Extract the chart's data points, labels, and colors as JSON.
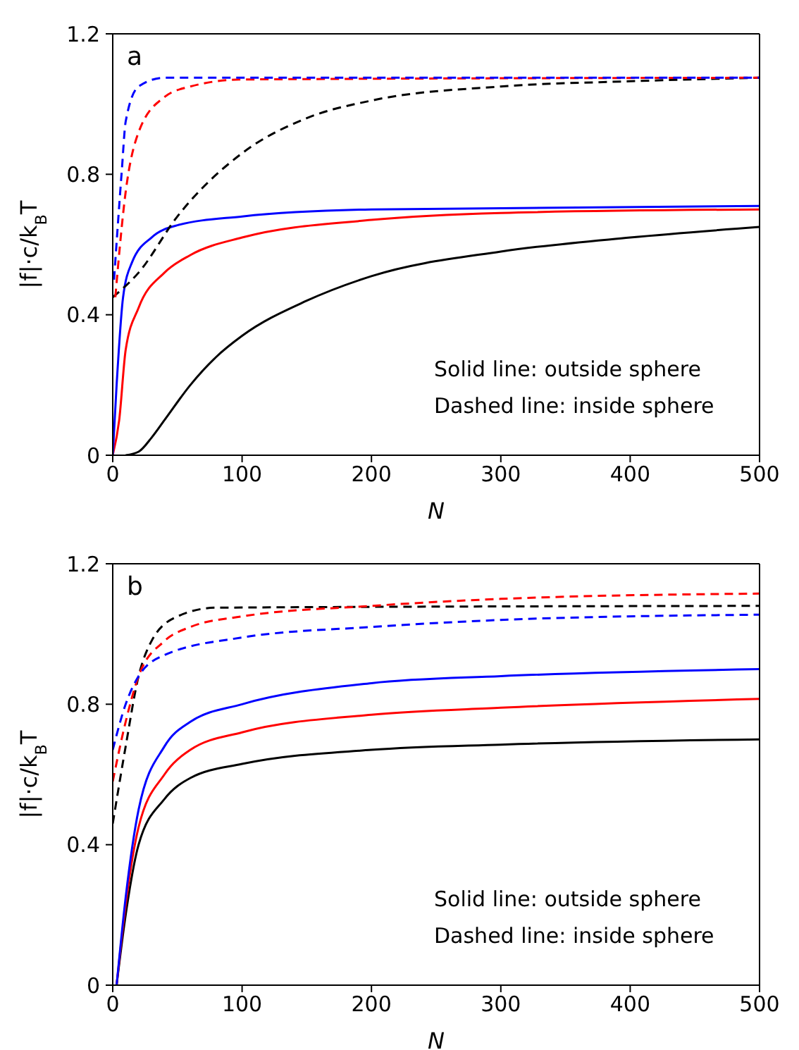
{
  "chart_data": [
    {
      "type": "line",
      "xlabel": "N",
      "ylabel": "|f|·c/k$_{B}$T",
      "xlim": [
        0,
        500
      ],
      "ylim": [
        0,
        1.2
      ],
      "xticks": [
        0,
        100,
        200,
        300,
        400,
        500
      ],
      "yticks": [
        0,
        0.4,
        0.8,
        1.2
      ],
      "grid": false,
      "marker": "none",
      "annotations": [
        "a",
        "Solid line: outside sphere",
        "Dashed line: inside sphere"
      ],
      "series": [
        {
          "color": "#000000",
          "line_style": "solid",
          "x": [
            10,
            20,
            30,
            40,
            60,
            80,
            100,
            150,
            200,
            300,
            400,
            500
          ],
          "values": [
            0,
            0.01,
            0.05,
            0.1,
            0.2,
            0.28,
            0.34,
            0.44,
            0.51,
            0.58,
            0.62,
            0.65
          ]
        },
        {
          "color": "#ff0000",
          "line_style": "solid",
          "x": [
            0,
            5,
            10,
            20,
            40,
            60,
            100,
            200,
            300,
            500
          ],
          "values": [
            0,
            0.1,
            0.3,
            0.42,
            0.52,
            0.57,
            0.62,
            0.67,
            0.69,
            0.7
          ]
        },
        {
          "color": "#0000ff",
          "line_style": "solid",
          "x": [
            0,
            3,
            8,
            15,
            30,
            50,
            100,
            200,
            500
          ],
          "values": [
            0,
            0.2,
            0.45,
            0.55,
            0.62,
            0.655,
            0.68,
            0.7,
            0.71
          ]
        },
        {
          "color": "#000000",
          "line_style": "dashed",
          "x": [
            0,
            20,
            50,
            100,
            150,
            200,
            300,
            400,
            500
          ],
          "values": [
            0.45,
            0.52,
            0.68,
            0.86,
            0.96,
            1.01,
            1.05,
            1.065,
            1.075
          ]
        },
        {
          "color": "#ff0000",
          "line_style": "dashed",
          "x": [
            2,
            10,
            20,
            40,
            60,
            100,
            500
          ],
          "values": [
            0.45,
            0.75,
            0.92,
            1.02,
            1.05,
            1.07,
            1.075
          ]
        },
        {
          "color": "#0000ff",
          "line_style": "dashed",
          "x": [
            1,
            7,
            10,
            20,
            40,
            500
          ],
          "values": [
            0.5,
            0.81,
            0.95,
            1.05,
            1.075,
            1.075
          ]
        }
      ]
    },
    {
      "type": "line",
      "xlabel": "N",
      "ylabel": "|f|·c/k$_{B}$T",
      "xlim": [
        0,
        500
      ],
      "ylim": [
        0,
        1.2
      ],
      "xticks": [
        0,
        100,
        200,
        300,
        400,
        500
      ],
      "yticks": [
        0,
        0.4,
        0.8,
        1.2
      ],
      "grid": false,
      "marker": "none",
      "annotations": [
        "b",
        "Solid line: outside sphere",
        "Dashed line: inside sphere"
      ],
      "series": [
        {
          "color": "#000000",
          "line_style": "solid",
          "x": [
            3,
            10,
            20,
            40,
            60,
            100,
            200,
            300,
            500
          ],
          "values": [
            0,
            0.2,
            0.4,
            0.53,
            0.59,
            0.63,
            0.67,
            0.685,
            0.7
          ]
        },
        {
          "color": "#ff0000",
          "line_style": "solid",
          "x": [
            3,
            10,
            20,
            40,
            60,
            100,
            200,
            300,
            500
          ],
          "values": [
            0,
            0.23,
            0.45,
            0.6,
            0.67,
            0.72,
            0.77,
            0.79,
            0.815
          ]
        },
        {
          "color": "#0000ff",
          "line_style": "solid",
          "x": [
            3,
            10,
            20,
            40,
            60,
            100,
            200,
            300,
            500
          ],
          "values": [
            0,
            0.25,
            0.5,
            0.68,
            0.75,
            0.8,
            0.86,
            0.88,
            0.9
          ]
        },
        {
          "color": "#000000",
          "line_style": "dashed",
          "x": [
            0,
            10,
            20,
            30,
            50,
            80,
            500
          ],
          "values": [
            0.46,
            0.68,
            0.88,
            0.98,
            1.05,
            1.075,
            1.08
          ]
        },
        {
          "color": "#ff0000",
          "line_style": "dashed",
          "x": [
            0,
            10,
            20,
            40,
            60,
            100,
            200,
            300,
            500
          ],
          "values": [
            0.58,
            0.75,
            0.88,
            0.98,
            1.02,
            1.05,
            1.08,
            1.1,
            1.115
          ]
        },
        {
          "color": "#0000ff",
          "line_style": "dashed",
          "x": [
            0,
            10,
            20,
            40,
            100,
            200,
            300,
            500
          ],
          "values": [
            0.67,
            0.8,
            0.88,
            0.94,
            0.99,
            1.02,
            1.04,
            1.055
          ]
        }
      ]
    }
  ]
}
